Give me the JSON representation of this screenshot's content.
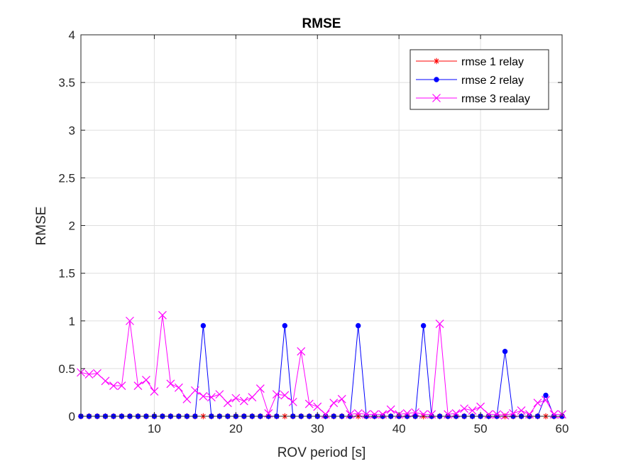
{
  "chart_data": {
    "type": "line",
    "title": "RMSE",
    "xlabel": "ROV period [s]",
    "ylabel": "RMSE",
    "xlim": [
      1,
      60
    ],
    "ylim": [
      0,
      4
    ],
    "xticks": [
      10,
      20,
      30,
      40,
      50,
      60
    ],
    "xtick_labels": [
      "10",
      "20",
      "30",
      "40",
      "50",
      "60"
    ],
    "yticks": [
      0,
      0.5,
      1,
      1.5,
      2,
      2.5,
      3,
      3.5,
      4
    ],
    "ytick_labels": [
      "0",
      "0.5",
      "1",
      "1.5",
      "2",
      "2.5",
      "3",
      "3.5",
      "4"
    ],
    "grid": true,
    "legend_position": "top-right",
    "x": [
      1,
      2,
      3,
      4,
      5,
      6,
      7,
      8,
      9,
      10,
      11,
      12,
      13,
      14,
      15,
      16,
      17,
      18,
      19,
      20,
      21,
      22,
      23,
      24,
      25,
      26,
      27,
      28,
      29,
      30,
      31,
      32,
      33,
      34,
      35,
      36,
      37,
      38,
      39,
      40,
      41,
      42,
      43,
      44,
      45,
      46,
      47,
      48,
      49,
      50,
      51,
      52,
      53,
      54,
      55,
      56,
      57,
      58,
      59,
      60
    ],
    "series": [
      {
        "name": "rmse 1 relay",
        "color": "#ff0000",
        "marker": "star",
        "values": [
          0,
          0,
          0,
          0,
          0,
          0,
          0,
          0,
          0,
          0,
          0,
          0,
          0,
          0,
          0,
          0,
          0,
          0,
          0,
          0,
          0,
          0,
          0,
          0,
          0,
          0,
          0,
          0,
          0,
          0,
          0,
          0,
          0,
          0,
          0,
          0,
          0,
          0,
          0,
          0,
          0,
          0,
          0,
          0,
          0,
          0,
          0,
          0,
          0,
          0,
          0,
          0,
          0,
          0,
          0,
          0,
          0,
          0,
          0,
          0
        ]
      },
      {
        "name": "rmse 2 relay",
        "color": "#0000ff",
        "marker": "dot",
        "values": [
          0,
          0,
          0,
          0,
          0,
          0,
          0,
          0,
          0,
          0,
          0,
          0,
          0,
          0,
          0,
          0.95,
          0,
          0,
          0,
          0,
          0,
          0,
          0,
          0,
          0,
          0.95,
          0,
          0,
          0,
          0,
          0,
          0,
          0,
          0,
          0.95,
          0,
          0,
          0,
          0,
          0,
          0,
          0,
          0.95,
          0,
          0,
          0,
          0,
          0,
          0,
          0,
          0,
          0,
          0.68,
          0,
          0,
          0,
          0,
          0.22,
          0,
          0
        ]
      },
      {
        "name": "rmse 3 realay",
        "color": "#ff00ff",
        "marker": "x",
        "values": [
          0.46,
          0.44,
          0.45,
          0.37,
          0.32,
          0.32,
          1.0,
          0.32,
          0.38,
          0.26,
          1.06,
          0.34,
          0.3,
          0.18,
          0.27,
          0.21,
          0.2,
          0.23,
          0.14,
          0.19,
          0.16,
          0.2,
          0.29,
          0.03,
          0.23,
          0.22,
          0.15,
          0.68,
          0.13,
          0.1,
          0.02,
          0.14,
          0.18,
          0.02,
          0.03,
          0.02,
          0.02,
          0.02,
          0.07,
          0.02,
          0.03,
          0.04,
          0.02,
          0.02,
          0.97,
          0.02,
          0.03,
          0.08,
          0.06,
          0.1,
          0.02,
          0.02,
          0.01,
          0.03,
          0.06,
          0.02,
          0.14,
          0.17,
          0.02,
          0.02
        ]
      }
    ]
  }
}
